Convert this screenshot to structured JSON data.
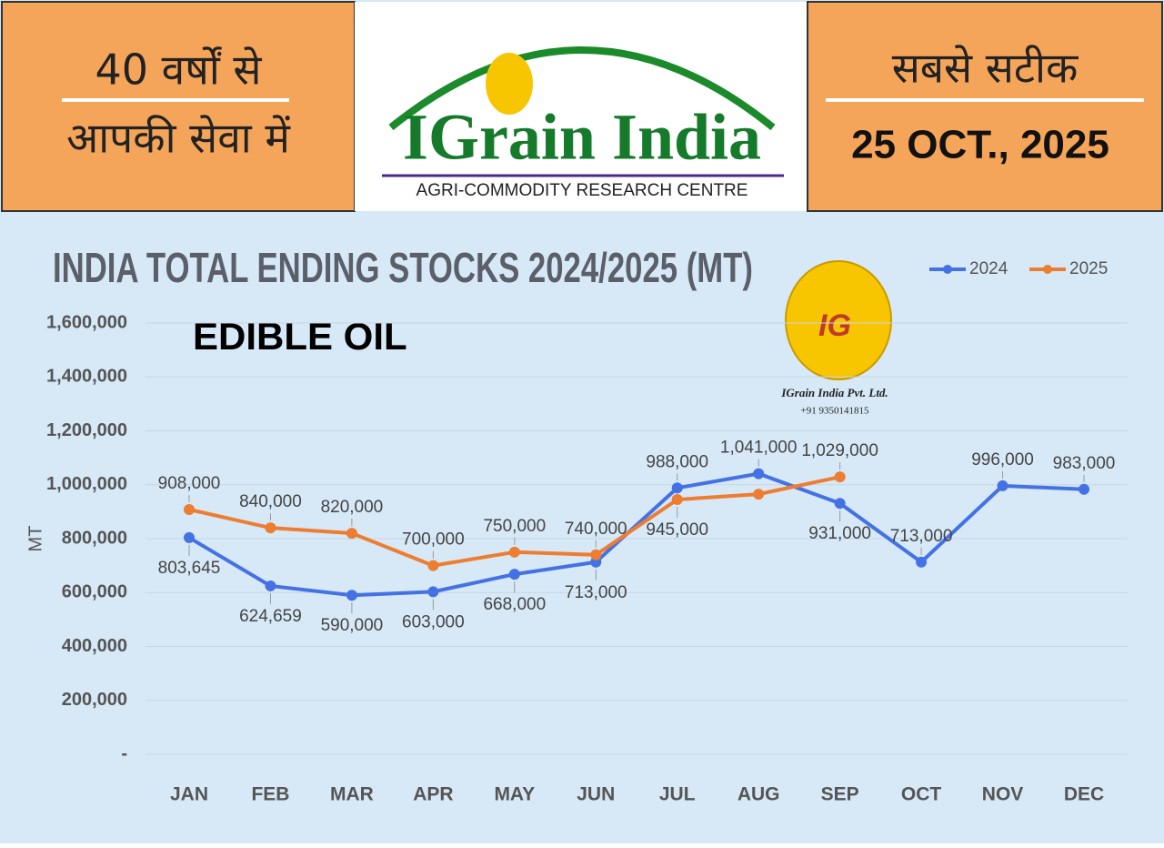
{
  "header": {
    "left_line1": "40 वर्षों से",
    "left_line2": "आपकी सेवा में",
    "brand": "IGrain India",
    "brand_tagline": "AGRI-COMMODITY RESEARCH CENTRE",
    "right_line1": "सबसे सटीक",
    "date": "25 OCT., 2025"
  },
  "logo": {
    "mark": "IG",
    "company": "IGrain India Pvt. Ltd.",
    "phone": "+91 9350141815"
  },
  "chart_data": {
    "type": "line",
    "title": "INDIA TOTAL ENDING STOCKS 2024/2025 (MT)",
    "subtitle": "EDIBLE OIL",
    "y_label": "MT",
    "categories": [
      "JAN",
      "FEB",
      "MAR",
      "APR",
      "MAY",
      "JUN",
      "JUL",
      "AUG",
      "SEP",
      "OCT",
      "NOV",
      "DEC"
    ],
    "series": [
      {
        "name": "2024",
        "color": "#4472e4",
        "values": [
          803645,
          624659,
          590000,
          603000,
          668000,
          713000,
          988000,
          1041000,
          931000,
          713000,
          996000,
          983000
        ],
        "value_labels": [
          "803,645",
          "624,659",
          "590,000",
          "603,000",
          "668,000",
          "713,000",
          "988,000",
          "1,041,000",
          "931,000",
          "713,000",
          "996,000",
          "983,000"
        ]
      },
      {
        "name": "2025",
        "color": "#ed7d31",
        "values": [
          908000,
          840000,
          820000,
          700000,
          750000,
          740000,
          945000,
          965000,
          1029000,
          null,
          null,
          null
        ],
        "value_labels": [
          "908,000",
          "840,000",
          "820,000",
          "700,000",
          "750,000",
          "740,000",
          "945,000",
          null,
          "1,029,000",
          null,
          null,
          null
        ]
      }
    ],
    "ylim": [
      0,
      1600000
    ],
    "yticks": [
      {
        "value": 0,
        "label": "-"
      },
      {
        "value": 200000,
        "label": "200,000"
      },
      {
        "value": 400000,
        "label": "400,000"
      },
      {
        "value": 600000,
        "label": "600,000"
      },
      {
        "value": 800000,
        "label": "800,000"
      },
      {
        "value": 1000000,
        "label": "1,000,000"
      },
      {
        "value": 1200000,
        "label": "1,200,000"
      },
      {
        "value": 1400000,
        "label": "1,400,000"
      },
      {
        "value": 1600000,
        "label": "1,600,000"
      }
    ],
    "grid": true,
    "legend": "top-right"
  }
}
